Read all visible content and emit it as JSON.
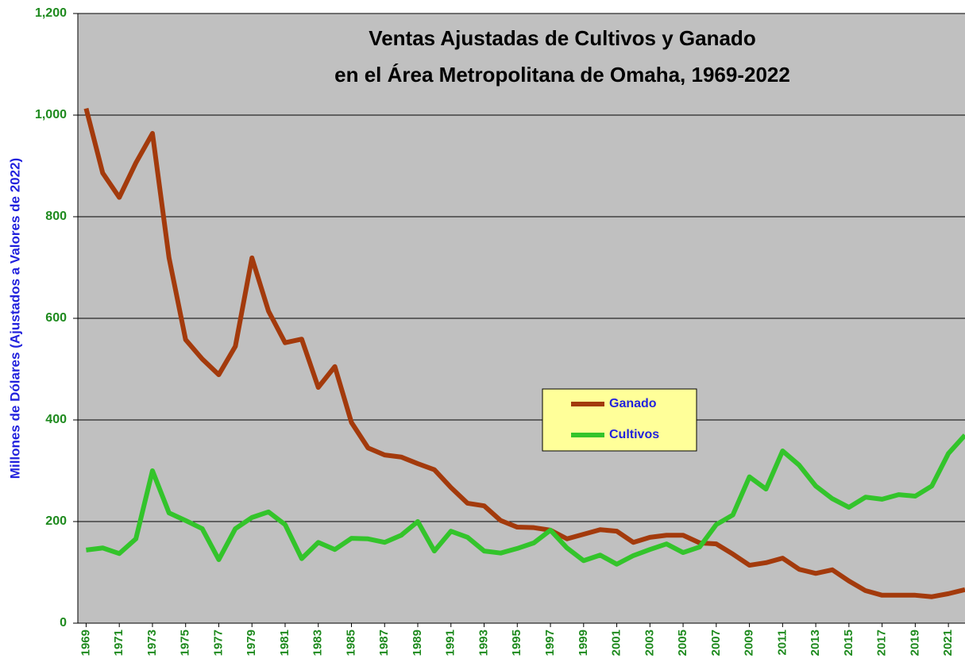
{
  "chart_data": {
    "type": "line",
    "title": [
      "Ventas Ajustadas de Cultivos y Ganado",
      "en el Área Metropolitana de Omaha, 1969-2022"
    ],
    "y_label": "Millones de Dólares (Ajustados a Valores de 2022)",
    "x": [
      1969,
      1970,
      1971,
      1972,
      1973,
      1974,
      1975,
      1976,
      1977,
      1978,
      1979,
      1980,
      1981,
      1982,
      1983,
      1984,
      1985,
      1986,
      1987,
      1988,
      1989,
      1990,
      1991,
      1992,
      1993,
      1994,
      1995,
      1996,
      1997,
      1998,
      1999,
      2000,
      2001,
      2002,
      2003,
      2004,
      2005,
      2006,
      2007,
      2008,
      2009,
      2010,
      2011,
      2012,
      2013,
      2014,
      2015,
      2016,
      2017,
      2018,
      2019,
      2020,
      2021,
      2022
    ],
    "series": [
      {
        "name": "Ganado",
        "color": "#a33a0c",
        "values": [
          1013,
          886,
          838,
          906,
          964,
          719,
          558,
          520,
          489,
          545,
          719,
          614,
          552,
          559,
          464,
          505,
          395,
          345,
          331,
          327,
          314,
          302,
          267,
          236,
          231,
          202,
          189,
          188,
          183,
          166,
          175,
          184,
          181,
          159,
          169,
          173,
          173,
          158,
          156,
          136,
          114,
          119,
          128,
          106,
          98,
          105,
          83,
          64,
          55,
          55,
          55,
          52,
          58,
          66
        ]
      },
      {
        "name": "Cultivos",
        "color": "#33c42b",
        "values": [
          144,
          148,
          137,
          166,
          300,
          217,
          202,
          186,
          125,
          186,
          208,
          219,
          194,
          127,
          159,
          145,
          167,
          166,
          159,
          173,
          200,
          142,
          181,
          169,
          142,
          138,
          147,
          158,
          183,
          148,
          123,
          134,
          116,
          133,
          145,
          156,
          139,
          150,
          194,
          213,
          288,
          264,
          339,
          311,
          270,
          245,
          228,
          248,
          244,
          253,
          250,
          270,
          334,
          370
        ]
      }
    ],
    "xlim": [
      1968.5,
      2022
    ],
    "xticks": [
      1969,
      1971,
      1973,
      1975,
      1977,
      1979,
      1981,
      1983,
      1985,
      1987,
      1989,
      1991,
      1993,
      1995,
      1997,
      1999,
      2001,
      2003,
      2005,
      2007,
      2009,
      2011,
      2013,
      2015,
      2017,
      2019,
      2021
    ],
    "ylim": [
      0,
      1200
    ],
    "yticks": [
      0,
      200,
      400,
      600,
      800,
      {
        "value": 1000,
        "label": "1,000"
      },
      {
        "value": 1200,
        "label": "1,200"
      }
    ],
    "grid": true,
    "legend": "center"
  }
}
